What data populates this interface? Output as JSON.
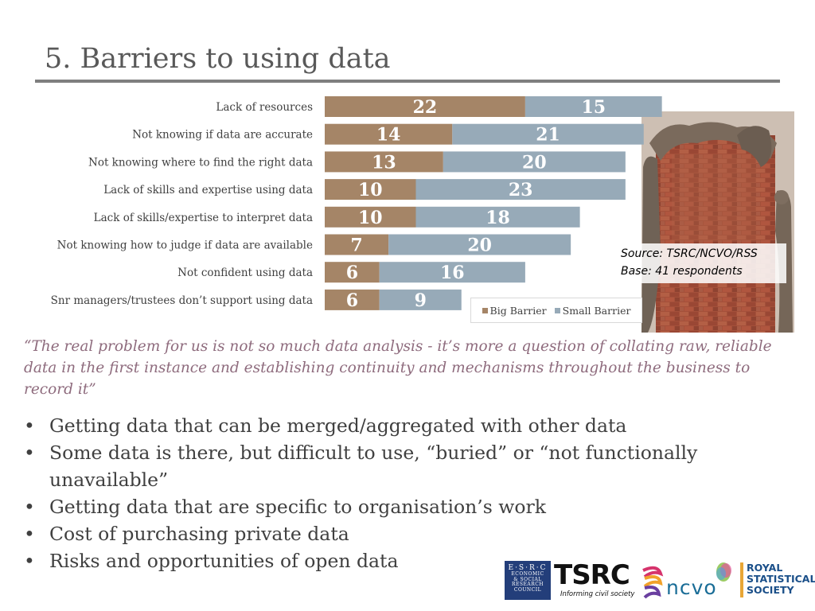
{
  "title": "5. Barriers to using data",
  "chart_data": {
    "type": "bar",
    "orientation": "horizontal",
    "stacked": true,
    "categories": [
      "Lack of resources",
      "Not knowing if data are accurate",
      "Not knowing where to find the right data",
      "Lack of skills and expertise using data",
      "Lack of skills/expertise to interpret data",
      "Not knowing how to judge if data are available",
      "Not confident using data",
      "Snr managers/trustees don’t support using data"
    ],
    "series": [
      {
        "name": "Big Barrier",
        "color": "#a58567",
        "values": [
          22,
          14,
          13,
          10,
          10,
          7,
          6,
          6
        ]
      },
      {
        "name": "Small Barrier",
        "color": "#97aab8",
        "values": [
          15,
          21,
          20,
          23,
          18,
          20,
          16,
          9
        ]
      }
    ],
    "legend_position": "bottom-right",
    "grid": false
  },
  "source_lines": [
    "Source: TSRC/NCVO/RSS",
    "Base: 41 respondents"
  ],
  "quote": "“The real problem for us is not so much data analysis - it’s more a question of collating raw, reliable data in the first instance and establishing continuity and mechanisms throughout the business to record it”",
  "bullet_char": "•",
  "bullets": [
    "Getting data that can be merged/aggregated with other data",
    "Some data is there, but difficult to use, “buried”  or  “not functionally unavailable”",
    "Getting data that are specific to organisation’s work",
    "Cost of purchasing private data",
    "Risks and opportunities of open data"
  ],
  "logos": {
    "esrc": [
      "E·S·R·C",
      "ECONOMIC",
      "& SOCIAL",
      "RESEARCH",
      "COUNCIL"
    ],
    "tsrc": "TSRC",
    "tsrc_tagline": "Informing civil society",
    "ncvo": "ncvo",
    "rss": [
      "ROYAL",
      "STATISTICAL",
      "SOCIETY"
    ]
  }
}
